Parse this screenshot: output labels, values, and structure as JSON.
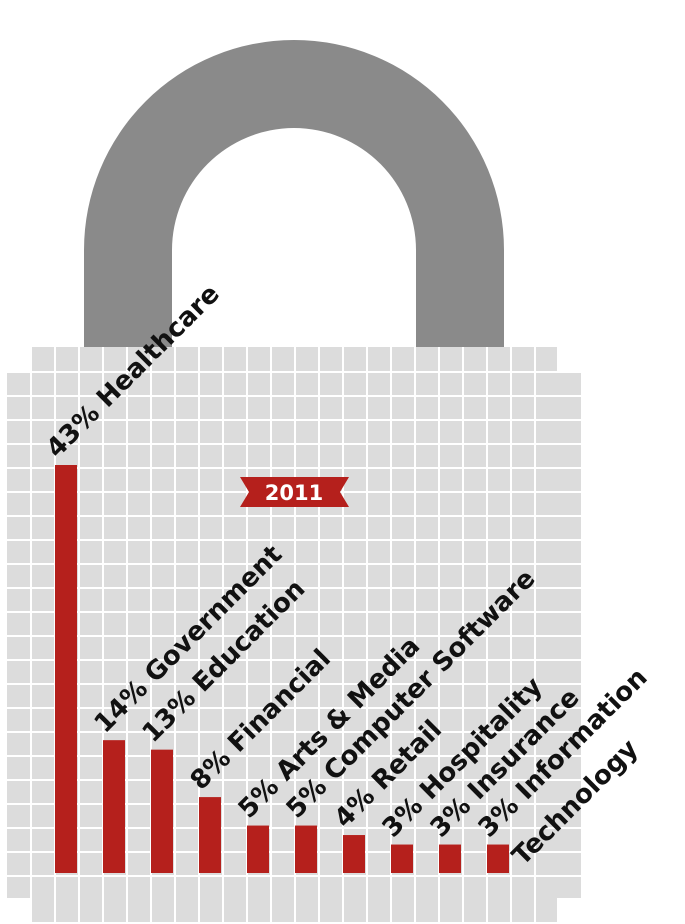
{
  "chart_data": {
    "type": "bar",
    "title": "2011",
    "categories": [
      "Healthcare",
      "Government",
      "Education",
      "Financial",
      "Arts & Media",
      "Computer Software",
      "Retail",
      "Hospitality",
      "Insurance",
      "Information Technology"
    ],
    "values": [
      43,
      14,
      13,
      8,
      5,
      5,
      4,
      3,
      3,
      3
    ],
    "labels": [
      "43% Healthcare",
      "14% Government",
      "13% Education",
      "8% Financial",
      "5% Arts & Media",
      "5% Computer Software",
      "4% Retail",
      "3% Hospitality",
      "3% Insurance",
      "3% Information"
    ],
    "extra_label": "Technology",
    "ylim": [
      0,
      43
    ],
    "grid": true,
    "legend": "none"
  },
  "colors": {
    "bar": "#b5201c",
    "shackle": "#8a8a8a",
    "grid_cell": "#dcdcdc",
    "grid_line": "#ffffff",
    "badge": "#b5201c",
    "badge_text": "#ffffff"
  }
}
